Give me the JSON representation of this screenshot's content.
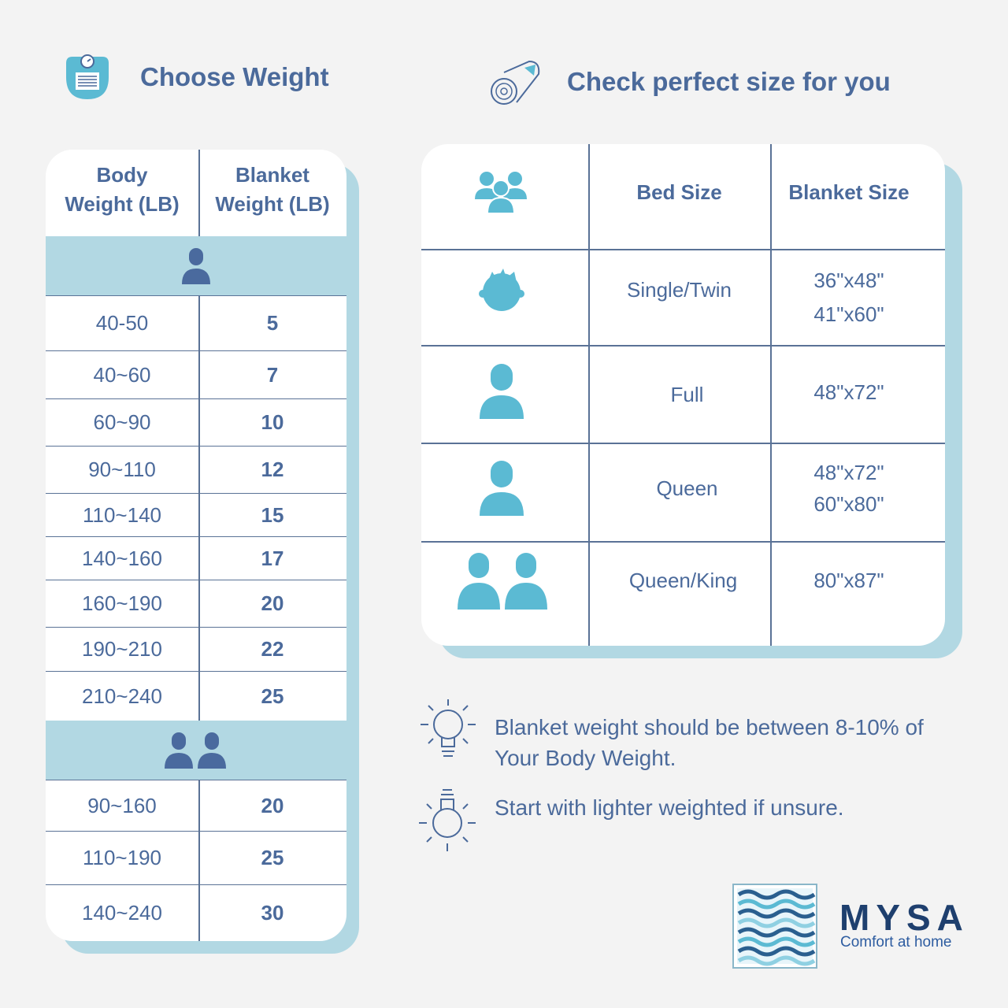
{
  "weight_section": {
    "title": "Choose Weight",
    "col1": "Body\nWeight (LB)",
    "col2": "Blanket\nWeight (LB)",
    "single_rows": [
      {
        "body": "40-50",
        "blanket": "5"
      },
      {
        "body": "40~60",
        "blanket": "7"
      },
      {
        "body": "60~90",
        "blanket": "10"
      },
      {
        "body": "90~110",
        "blanket": "12"
      },
      {
        "body": "110~140",
        "blanket": "15"
      },
      {
        "body": "140~160",
        "blanket": "17"
      },
      {
        "body": "160~190",
        "blanket": "20"
      },
      {
        "body": "190~210",
        "blanket": "22"
      },
      {
        "body": "210~240",
        "blanket": "25"
      }
    ],
    "double_rows": [
      {
        "body": "90~160",
        "blanket": "20"
      },
      {
        "body": "110~190",
        "blanket": "25"
      },
      {
        "body": "140~240",
        "blanket": "30"
      }
    ]
  },
  "size_section": {
    "title": "Check perfect size for you",
    "col_bed": "Bed Size",
    "col_blanket": "Blanket Size",
    "rows": [
      {
        "icon": "child-icon",
        "bed": "Single/Twin",
        "sizes": [
          "36\"x48\"",
          "41\"x60\""
        ]
      },
      {
        "icon": "person-icon",
        "bed": "Full",
        "sizes": [
          "48\"x72\""
        ]
      },
      {
        "icon": "person-icon",
        "bed": "Queen",
        "sizes": [
          "48\"x72\"",
          "60\"x80\""
        ]
      },
      {
        "icon": "two-persons-icon",
        "bed": "Queen/King",
        "sizes": [
          "80\"x87\""
        ]
      }
    ]
  },
  "tips": [
    "Blanket weight should be between 8-10% of\nYour Body Weight.",
    "Start with lighter weighted if unsure."
  ],
  "brand": {
    "name": "MYSA",
    "tagline": "Comfort at home"
  },
  "colors": {
    "navy": "#4b6a9b",
    "light_blue": "#b2d8e3",
    "icon_teal": "#5bbad3",
    "icon_navy": "#4a6a9e"
  }
}
